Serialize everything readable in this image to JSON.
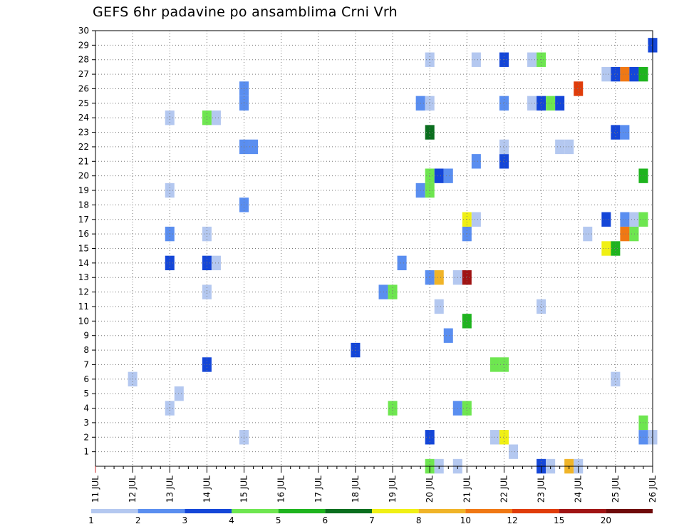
{
  "chart_data": {
    "type": "heatmap",
    "title": "GEFS 6hr padavine po ansamblima Crni Vrh",
    "x_ticks": [
      "11 JUL",
      "12 JUL",
      "13 JUL",
      "14 JUL",
      "15 JUL",
      "16 JUL",
      "17 JUL",
      "18 JUL",
      "19 JUL",
      "20 JUL",
      "21 JUL",
      "22 JUL",
      "23 JUL",
      "24 JUL",
      "25 JUL",
      "26 JUL"
    ],
    "y_ticks": [
      "1",
      "2",
      "3",
      "4",
      "5",
      "6",
      "7",
      "8",
      "9",
      "10",
      "11",
      "12",
      "13",
      "14",
      "15",
      "16",
      "17",
      "18",
      "19",
      "20",
      "21",
      "22",
      "23",
      "24",
      "25",
      "26",
      "27",
      "28",
      "29",
      "30"
    ],
    "xlim": [
      "11 JUL 00",
      "26 JUL 00"
    ],
    "ylim": [
      0,
      30
    ],
    "grid": true,
    "x_unit": "6-hour step from 11 JUL 00",
    "legend": {
      "placement": "bottom",
      "labels": [
        "1",
        "2",
        "3",
        "4",
        "5",
        "6",
        "7",
        "8",
        "10",
        "12",
        "15",
        "20"
      ],
      "colors": [
        "#b4c8f0",
        "#5a8ef0",
        "#1446d8",
        "#6ee650",
        "#1eb41e",
        "#0a6e1e",
        "#f0f014",
        "#f0b428",
        "#f07814",
        "#e03c0a",
        "#a01414",
        "#6e0a0a"
      ]
    },
    "cells": [
      {
        "x": "20 JUL 00",
        "y": 0,
        "c": 4
      },
      {
        "x": "20 JUL 06",
        "y": 0,
        "c": 1
      },
      {
        "x": "20 JUL 18",
        "y": 0,
        "c": 1
      },
      {
        "x": "23 JUL 00",
        "y": 0,
        "c": 3
      },
      {
        "x": "23 JUL 06",
        "y": 0,
        "c": 1
      },
      {
        "x": "23 JUL 18",
        "y": 0,
        "c": 8
      },
      {
        "x": "24 JUL 00",
        "y": 0,
        "c": 1
      },
      {
        "x": "22 JUL 06",
        "y": 1,
        "c": 1
      },
      {
        "x": "15 JUL 00",
        "y": 2,
        "c": 1
      },
      {
        "x": "20 JUL 00",
        "y": 2,
        "c": 3
      },
      {
        "x": "21 JUL 18",
        "y": 2,
        "c": 1
      },
      {
        "x": "22 JUL 00",
        "y": 2,
        "c": 7
      },
      {
        "x": "25 JUL 18",
        "y": 2,
        "c": 2
      },
      {
        "x": "26 JUL 00",
        "y": 2,
        "c": 1
      },
      {
        "x": "25 JUL 18",
        "y": 3,
        "c": 4
      },
      {
        "x": "13 JUL 00",
        "y": 4,
        "c": 1
      },
      {
        "x": "19 JUL 00",
        "y": 4,
        "c": 4
      },
      {
        "x": "20 JUL 18",
        "y": 4,
        "c": 2
      },
      {
        "x": "21 JUL 00",
        "y": 4,
        "c": 4
      },
      {
        "x": "13 JUL 06",
        "y": 5,
        "c": 1
      },
      {
        "x": "12 JUL 00",
        "y": 6,
        "c": 1
      },
      {
        "x": "25 JUL 00",
        "y": 6,
        "c": 1
      },
      {
        "x": "14 JUL 00",
        "y": 7,
        "c": 3
      },
      {
        "x": "21 JUL 18",
        "y": 7,
        "c": 4
      },
      {
        "x": "22 JUL 00",
        "y": 7,
        "c": 4
      },
      {
        "x": "18 JUL 00",
        "y": 8,
        "c": 3
      },
      {
        "x": "20 JUL 12",
        "y": 9,
        "c": 2
      },
      {
        "x": "21 JUL 00",
        "y": 10,
        "c": 5
      },
      {
        "x": "20 JUL 06",
        "y": 11,
        "c": 1
      },
      {
        "x": "23 JUL 00",
        "y": 11,
        "c": 1
      },
      {
        "x": "14 JUL 00",
        "y": 12,
        "c": 1
      },
      {
        "x": "18 JUL 18",
        "y": 12,
        "c": 2
      },
      {
        "x": "19 JUL 00",
        "y": 12,
        "c": 4
      },
      {
        "x": "20 JUL 00",
        "y": 13,
        "c": 2
      },
      {
        "x": "20 JUL 06",
        "y": 13,
        "c": 8
      },
      {
        "x": "20 JUL 18",
        "y": 13,
        "c": 1
      },
      {
        "x": "21 JUL 00",
        "y": 13,
        "c": 11
      },
      {
        "x": "13 JUL 00",
        "y": 14,
        "c": 3
      },
      {
        "x": "14 JUL 00",
        "y": 14,
        "c": 3
      },
      {
        "x": "14 JUL 06",
        "y": 14,
        "c": 1
      },
      {
        "x": "19 JUL 06",
        "y": 14,
        "c": 2
      },
      {
        "x": "24 JUL 18",
        "y": 15,
        "c": 7
      },
      {
        "x": "25 JUL 00",
        "y": 15,
        "c": 5
      },
      {
        "x": "13 JUL 00",
        "y": 16,
        "c": 2
      },
      {
        "x": "14 JUL 00",
        "y": 16,
        "c": 1
      },
      {
        "x": "21 JUL 00",
        "y": 16,
        "c": 2
      },
      {
        "x": "24 JUL 06",
        "y": 16,
        "c": 1
      },
      {
        "x": "25 JUL 06",
        "y": 16,
        "c": 9
      },
      {
        "x": "25 JUL 12",
        "y": 16,
        "c": 4
      },
      {
        "x": "21 JUL 00",
        "y": 17,
        "c": 7
      },
      {
        "x": "21 JUL 06",
        "y": 17,
        "c": 1
      },
      {
        "x": "24 JUL 18",
        "y": 17,
        "c": 3
      },
      {
        "x": "25 JUL 06",
        "y": 17,
        "c": 2
      },
      {
        "x": "25 JUL 12",
        "y": 17,
        "c": 1
      },
      {
        "x": "25 JUL 18",
        "y": 17,
        "c": 4
      },
      {
        "x": "15 JUL 00",
        "y": 18,
        "c": 2
      },
      {
        "x": "13 JUL 00",
        "y": 19,
        "c": 1
      },
      {
        "x": "19 JUL 18",
        "y": 19,
        "c": 2
      },
      {
        "x": "20 JUL 00",
        "y": 19,
        "c": 4
      },
      {
        "x": "20 JUL 00",
        "y": 20,
        "c": 4
      },
      {
        "x": "20 JUL 06",
        "y": 20,
        "c": 3
      },
      {
        "x": "20 JUL 12",
        "y": 20,
        "c": 2
      },
      {
        "x": "25 JUL 18",
        "y": 20,
        "c": 5
      },
      {
        "x": "21 JUL 06",
        "y": 21,
        "c": 2
      },
      {
        "x": "22 JUL 00",
        "y": 21,
        "c": 3
      },
      {
        "x": "15 JUL 00",
        "y": 22,
        "c": 2
      },
      {
        "x": "15 JUL 06",
        "y": 22,
        "c": 2
      },
      {
        "x": "22 JUL 00",
        "y": 22,
        "c": 1
      },
      {
        "x": "23 JUL 12",
        "y": 22,
        "c": 1
      },
      {
        "x": "23 JUL 18",
        "y": 22,
        "c": 1
      },
      {
        "x": "20 JUL 00",
        "y": 23,
        "c": 6
      },
      {
        "x": "25 JUL 00",
        "y": 23,
        "c": 3
      },
      {
        "x": "25 JUL 06",
        "y": 23,
        "c": 2
      },
      {
        "x": "13 JUL 00",
        "y": 24,
        "c": 1
      },
      {
        "x": "14 JUL 00",
        "y": 24,
        "c": 4
      },
      {
        "x": "14 JUL 06",
        "y": 24,
        "c": 1
      },
      {
        "x": "15 JUL 00",
        "y": 25,
        "c": 2
      },
      {
        "x": "19 JUL 18",
        "y": 25,
        "c": 2
      },
      {
        "x": "20 JUL 00",
        "y": 25,
        "c": 1
      },
      {
        "x": "22 JUL 00",
        "y": 25,
        "c": 2
      },
      {
        "x": "22 JUL 18",
        "y": 25,
        "c": 1
      },
      {
        "x": "23 JUL 00",
        "y": 25,
        "c": 3
      },
      {
        "x": "23 JUL 06",
        "y": 25,
        "c": 4
      },
      {
        "x": "23 JUL 12",
        "y": 25,
        "c": 3
      },
      {
        "x": "15 JUL 00",
        "y": 26,
        "c": 2
      },
      {
        "x": "24 JUL 00",
        "y": 26,
        "c": 10
      },
      {
        "x": "24 JUL 18",
        "y": 27,
        "c": 1
      },
      {
        "x": "25 JUL 00",
        "y": 27,
        "c": 3
      },
      {
        "x": "25 JUL 06",
        "y": 27,
        "c": 9
      },
      {
        "x": "25 JUL 12",
        "y": 27,
        "c": 3
      },
      {
        "x": "25 JUL 18",
        "y": 27,
        "c": 5
      },
      {
        "x": "20 JUL 00",
        "y": 28,
        "c": 1
      },
      {
        "x": "21 JUL 06",
        "y": 28,
        "c": 1
      },
      {
        "x": "22 JUL 00",
        "y": 28,
        "c": 3
      },
      {
        "x": "22 JUL 18",
        "y": 28,
        "c": 1
      },
      {
        "x": "23 JUL 00",
        "y": 28,
        "c": 4
      },
      {
        "x": "26 JUL 00",
        "y": 29,
        "c": 3
      }
    ]
  }
}
